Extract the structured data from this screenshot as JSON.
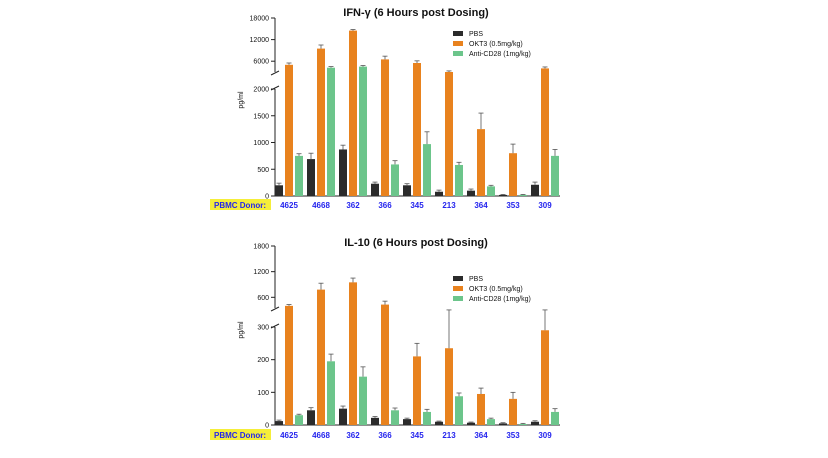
{
  "colors": {
    "pbs": "#2b2b2b",
    "okt3": "#e8821e",
    "anti_cd28": "#6cc58b",
    "donor_label_bg": "#f5ee3a",
    "donor_text": "#2424ee"
  },
  "chart_data": [
    {
      "type": "bar",
      "title": "IFN-γ (6 Hours post Dosing)",
      "ylabel": "pg/ml",
      "xlabel": "PBMC Donor:",
      "categories": [
        "4625",
        "4668",
        "362",
        "366",
        "345",
        "213",
        "364",
        "353",
        "309"
      ],
      "axis_break": true,
      "lower_segment": {
        "ylim": [
          0,
          2000
        ],
        "ticks": [
          "0",
          "500",
          "1000",
          "1500",
          "2000"
        ],
        "tick_values": [
          0,
          500,
          1000,
          1500,
          2000
        ]
      },
      "upper_segment": {
        "ylim": [
          3000,
          18000
        ],
        "ticks": [
          "6000",
          "12000",
          "18000"
        ],
        "tick_values": [
          6000,
          12000,
          18000
        ]
      },
      "legend_position": "top-right",
      "grid": false,
      "series": [
        {
          "name": "PBS",
          "values": [
            200,
            690,
            870,
            230,
            200,
            80,
            100,
            20,
            210
          ],
          "errors": [
            40,
            110,
            80,
            30,
            30,
            30,
            30,
            10,
            50
          ]
        },
        {
          "name": "OKT3 (0.5mg/kg)",
          "values": [
            5000,
            9500,
            14500,
            6500,
            5500,
            3000,
            1250,
            800,
            4000
          ],
          "errors": [
            500,
            1000,
            300,
            900,
            600,
            300,
            300,
            170,
            400
          ]
        },
        {
          "name": "Anti-CD28 (1mg/kg)",
          "values": [
            750,
            4200,
            4500,
            590,
            970,
            580,
            180,
            20,
            750
          ],
          "errors": [
            40,
            300,
            300,
            70,
            230,
            50,
            20,
            10,
            120
          ]
        }
      ]
    },
    {
      "type": "bar",
      "title": "IL-10 (6 Hours post Dosing)",
      "ylabel": "pg/ml",
      "xlabel": "PBMC Donor:",
      "categories": [
        "4625",
        "4668",
        "362",
        "366",
        "345",
        "213",
        "364",
        "353",
        "309"
      ],
      "axis_break": true,
      "lower_segment": {
        "ylim": [
          0,
          300
        ],
        "ticks": [
          "0",
          "100",
          "200",
          "300"
        ],
        "tick_values": [
          0,
          100,
          200,
          300
        ]
      },
      "upper_segment": {
        "ylim": [
          350,
          1800
        ],
        "ticks": [
          "600",
          "1200",
          "1800"
        ],
        "tick_values": [
          600,
          1200,
          1800
        ]
      },
      "legend_position": "top-right",
      "grid": false,
      "series": [
        {
          "name": "PBS",
          "values": [
            12,
            45,
            50,
            22,
            18,
            10,
            7,
            5,
            10
          ],
          "errors": [
            3,
            8,
            8,
            4,
            3,
            2,
            2,
            2,
            3
          ]
        },
        {
          "name": "OKT3 (0.5mg/kg)",
          "values": [
            400,
            780,
            950,
            430,
            210,
            235,
            95,
            80,
            290
          ],
          "errors": [
            30,
            150,
            100,
            80,
            40,
            70,
            18,
            20,
            15
          ]
        },
        {
          "name": "Anti-CD28 (1mg/kg)",
          "values": [
            30,
            195,
            148,
            45,
            40,
            88,
            18,
            3,
            40
          ],
          "errors": [
            3,
            22,
            30,
            7,
            8,
            10,
            3,
            2,
            10
          ]
        }
      ]
    }
  ]
}
